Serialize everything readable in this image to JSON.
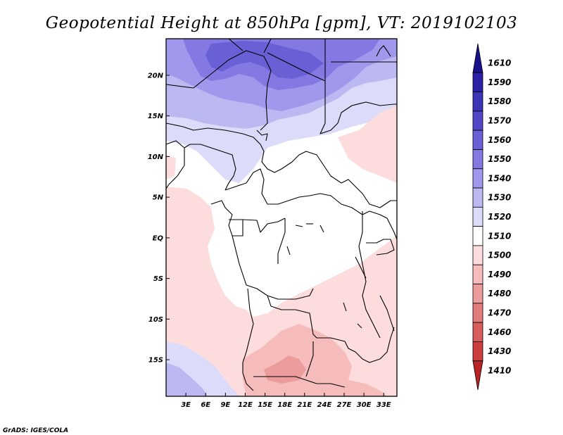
{
  "title": "Geopotential Height at 850hPa [gpm], VT: 2019102103",
  "credit": "GrADS: IGES/COLA",
  "map": {
    "lon_range": [
      0,
      35
    ],
    "lat_range": [
      -19.5,
      24.5
    ],
    "lat_ticks": [
      {
        "value": 20,
        "label": "20N"
      },
      {
        "value": 15,
        "label": "15N"
      },
      {
        "value": 10,
        "label": "10N"
      },
      {
        "value": 5,
        "label": "5N"
      },
      {
        "value": 0,
        "label": "EQ"
      },
      {
        "value": -5,
        "label": "5S"
      },
      {
        "value": -10,
        "label": "10S"
      },
      {
        "value": -15,
        "label": "15S"
      }
    ],
    "lon_ticks": [
      {
        "value": 3,
        "label": "3E"
      },
      {
        "value": 6,
        "label": "6E"
      },
      {
        "value": 9,
        "label": "9E"
      },
      {
        "value": 12,
        "label": "12E"
      },
      {
        "value": 15,
        "label": "15E"
      },
      {
        "value": 18,
        "label": "18E"
      },
      {
        "value": 21,
        "label": "21E"
      },
      {
        "value": 24,
        "label": "24E"
      },
      {
        "value": 27,
        "label": "27E"
      },
      {
        "value": 30,
        "label": "30E"
      },
      {
        "value": 33,
        "label": "33E"
      }
    ]
  },
  "colorbar": {
    "levels": [
      {
        "label": "1610",
        "color": "#1a108e"
      },
      {
        "label": "1590",
        "color": "#2a20a6"
      },
      {
        "label": "1580",
        "color": "#3b34b6"
      },
      {
        "label": "1570",
        "color": "#5046c6"
      },
      {
        "label": "1560",
        "color": "#6a60d6"
      },
      {
        "label": "1550",
        "color": "#8478e2"
      },
      {
        "label": "1540",
        "color": "#9f98ec"
      },
      {
        "label": "1530",
        "color": "#bcb8f2"
      },
      {
        "label": "1520",
        "color": "#dcdcfa"
      },
      {
        "label": "1510",
        "color": "#ffffff"
      },
      {
        "label": "1500",
        "color": "#fcdcdc"
      },
      {
        "label": "1490",
        "color": "#f6bcbc"
      },
      {
        "label": "1480",
        "color": "#ec9c9c"
      },
      {
        "label": "1470",
        "color": "#e27c7c"
      },
      {
        "label": "1460",
        "color": "#d85c5c"
      },
      {
        "label": "1430",
        "color": "#cc3e3e"
      },
      {
        "label": "1410",
        "color": "#b82424"
      }
    ]
  }
}
